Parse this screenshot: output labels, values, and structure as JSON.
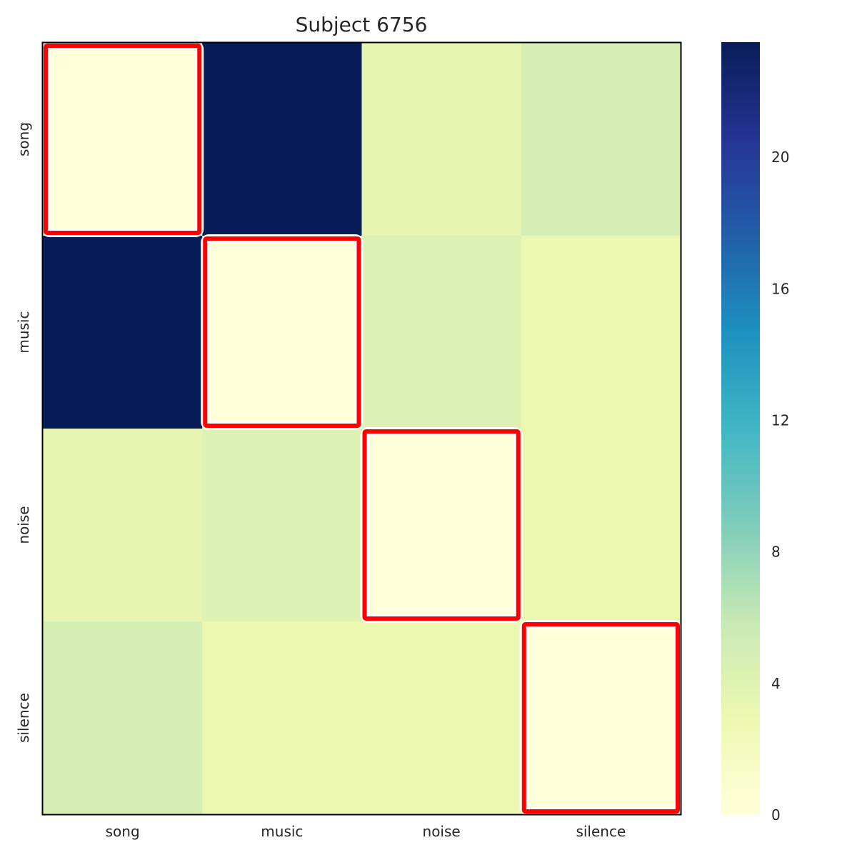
{
  "chart_data": {
    "type": "heatmap",
    "title": "Subject 6756",
    "xlabel": "",
    "ylabel": "",
    "x_categories": [
      "song",
      "music",
      "noise",
      "silence"
    ],
    "y_categories": [
      "song",
      "music",
      "noise",
      "silence"
    ],
    "values": [
      [
        0.0,
        24.0,
        3.5,
        4.8
      ],
      [
        24.0,
        0.0,
        4.2,
        3.0
      ],
      [
        3.5,
        4.2,
        0.0,
        3.0
      ],
      [
        4.8,
        3.0,
        3.0,
        0.0
      ]
    ],
    "colormap": "YlGnBu",
    "vmin": 0,
    "vmax": 23.5,
    "colorbar": {
      "ticks": [
        0,
        4,
        8,
        12,
        16,
        20
      ],
      "tick_labels": [
        "0",
        "4",
        "8",
        "12",
        "16",
        "20"
      ]
    },
    "highlight": {
      "description_cells": [
        [
          0,
          0
        ],
        [
          1,
          1
        ],
        [
          2,
          2
        ],
        [
          3,
          3
        ]
      ],
      "color": "#ff0000",
      "outline_color": "#ffffff"
    },
    "grid": false
  }
}
